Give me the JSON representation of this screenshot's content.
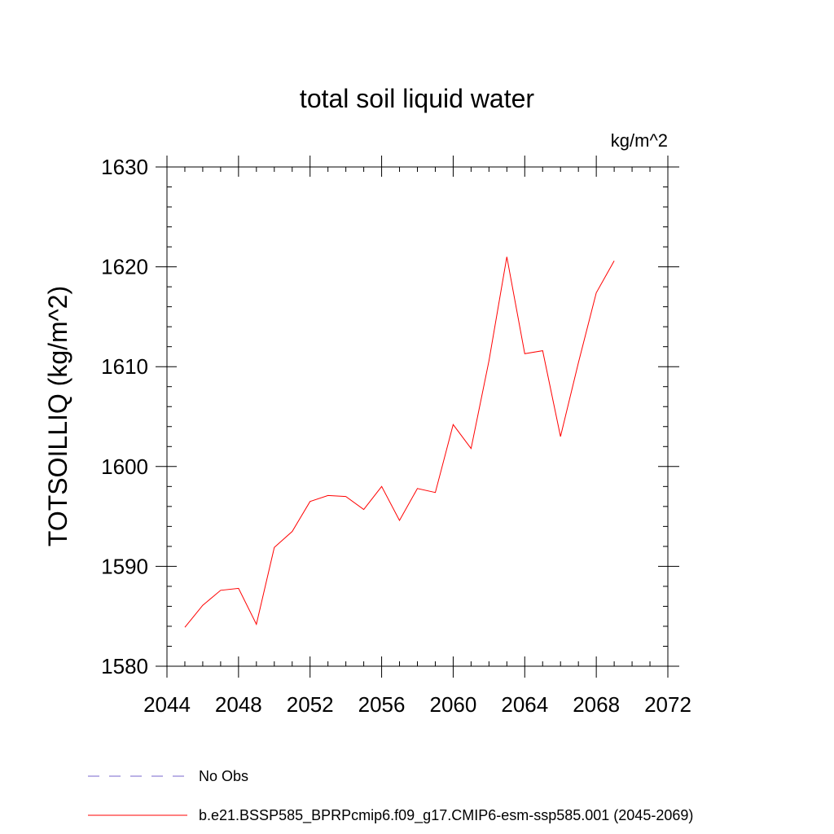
{
  "chart_data": {
    "type": "line",
    "title": "total soil liquid water",
    "units_label": "kg/m^2",
    "ylabel": "TOTSOILLIQ  (kg/m^2)",
    "xlabel": "",
    "xlim": [
      2044,
      2072
    ],
    "ylim": [
      1580,
      1630
    ],
    "x_ticks": [
      2044,
      2048,
      2052,
      2056,
      2060,
      2064,
      2068,
      2072
    ],
    "y_ticks": [
      1580,
      1590,
      1600,
      1610,
      1620,
      1630
    ],
    "x_minor_step": 1,
    "y_minor_step": 2,
    "grid": false,
    "legend_position": "bottom",
    "series": [
      {
        "name": "b.e21.BSSP585_BPRPcmip6.f09_g17.CMIP6-esm-ssp585.001 (2045-2069)",
        "color": "#ff0000",
        "x": [
          2045,
          2046,
          2047,
          2048,
          2049,
          2050,
          2051,
          2052,
          2053,
          2054,
          2055,
          2056,
          2057,
          2058,
          2059,
          2060,
          2061,
          2062,
          2063,
          2064,
          2065,
          2066,
          2067,
          2068,
          2069
        ],
        "values": [
          1583.9,
          1586.1,
          1587.6,
          1587.8,
          1584.2,
          1591.9,
          1593.5,
          1596.5,
          1597.1,
          1597.0,
          1595.7,
          1598.0,
          1594.6,
          1597.8,
          1597.4,
          1604.2,
          1601.8,
          1610.6,
          1621.0,
          1611.3,
          1611.6,
          1603.0,
          1610.4,
          1617.4,
          1620.6
        ]
      }
    ],
    "legend": [
      {
        "label": "No Obs",
        "color": "#7766cc",
        "style": "dashed"
      },
      {
        "label": "b.e21.BSSP585_BPRPcmip6.f09_g17.CMIP6-esm-ssp585.001 (2045-2069)",
        "color": "#ff0000",
        "style": "solid"
      }
    ]
  }
}
